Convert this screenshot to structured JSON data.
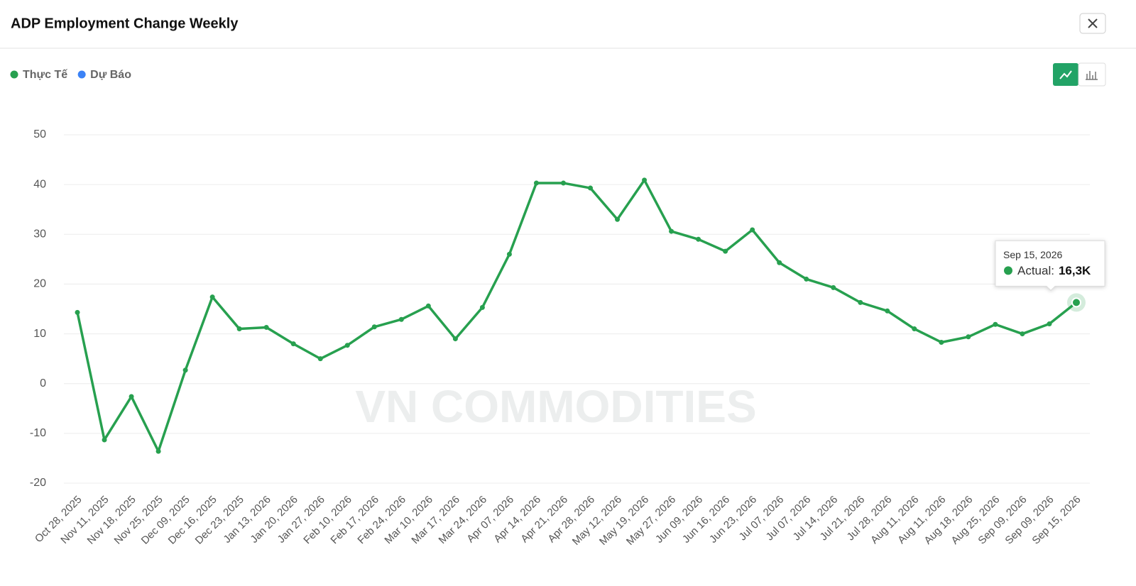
{
  "chart_data": {
    "type": "line",
    "title": "ADP Employment Change Weekly",
    "watermark": "VN COMMODITIES",
    "categories": [
      "Oct 28, 2025",
      "Nov 11, 2025",
      "Nov 18, 2025",
      "Nov 25, 2025",
      "Dec 09, 2025",
      "Dec 16, 2025",
      "Dec 23, 2025",
      "Jan 13, 2026",
      "Jan 20, 2026",
      "Jan 27, 2026",
      "Feb 10, 2026",
      "Feb 17, 2026",
      "Feb 24, 2026",
      "Mar 10, 2026",
      "Mar 17, 2026",
      "Mar 24, 2026",
      "Apr 07, 2026",
      "Apr 14, 2026",
      "Apr 21, 2026",
      "Apr 28, 2026",
      "May 12, 2026",
      "May 19, 2026",
      "May 27, 2026",
      "Jun 09, 2026",
      "Jun 16, 2026",
      "Jun 23, 2026",
      "Jul 07, 2026",
      "Jul 07, 2026",
      "Jul 14, 2026",
      "Jul 21, 2026",
      "Jul 28, 2026",
      "Aug 11, 2026",
      "Aug 11, 2026",
      "Aug 18, 2026",
      "Aug 25, 2026",
      "Sep 09, 2026",
      "Sep 09, 2026",
      "Sep 15, 2026"
    ],
    "series": [
      {
        "name": "Thực Tế",
        "color": "#27a04f",
        "values": [
          14.3,
          -11.3,
          -2.6,
          -13.6,
          2.7,
          17.4,
          11.0,
          11.3,
          8.0,
          5.0,
          7.7,
          11.4,
          12.9,
          15.6,
          9.0,
          15.3,
          26.0,
          40.3,
          40.3,
          39.3,
          33.0,
          40.9,
          30.6,
          29.0,
          26.6,
          30.9,
          24.3,
          21.0,
          19.3,
          16.3,
          14.6,
          11.0,
          8.3,
          9.4,
          11.9,
          10.0,
          12.0,
          16.3
        ]
      },
      {
        "name": "Dự Báo",
        "color": "#3b82f6",
        "values": [
          null,
          null,
          null,
          null,
          null,
          null,
          null,
          null,
          null,
          null,
          null,
          null,
          null,
          null,
          null,
          null,
          null,
          null,
          null,
          null,
          null,
          null,
          null,
          null,
          null,
          null,
          null,
          null,
          null,
          null,
          null,
          null,
          null,
          null,
          null,
          null,
          null,
          null
        ]
      }
    ],
    "ylim": [
      -20,
      50
    ],
    "yticks": [
      -20,
      -10,
      0,
      10,
      20,
      30,
      40,
      50
    ],
    "grid": true,
    "tooltip": {
      "label": "Actual:",
      "value_label": "16,3K"
    }
  }
}
